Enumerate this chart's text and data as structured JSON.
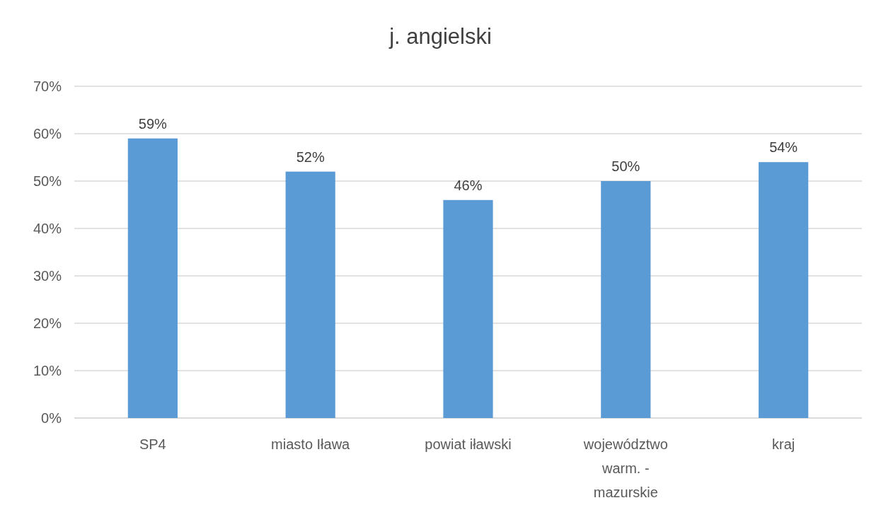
{
  "chart_data": {
    "type": "bar",
    "title": "j. angielski",
    "categories": [
      "SP4",
      "miasto Iława",
      "powiat iławski",
      "województwo warm. - mazurskie",
      "kraj"
    ],
    "values": [
      59,
      52,
      46,
      50,
      54
    ],
    "value_labels": [
      "59%",
      "52%",
      "46%",
      "50%",
      "54%"
    ],
    "color": "#5b9bd5",
    "ylim": [
      0,
      70
    ],
    "yticks": [
      {
        "value": 0,
        "label": "0%"
      },
      {
        "value": 10,
        "label": "10%"
      },
      {
        "value": 20,
        "label": "20%"
      },
      {
        "value": 30,
        "label": "30%"
      },
      {
        "value": 40,
        "label": "40%"
      },
      {
        "value": 50,
        "label": "50%"
      },
      {
        "value": 60,
        "label": "60%"
      },
      {
        "value": 70,
        "label": "70%"
      }
    ],
    "grid": "y"
  }
}
